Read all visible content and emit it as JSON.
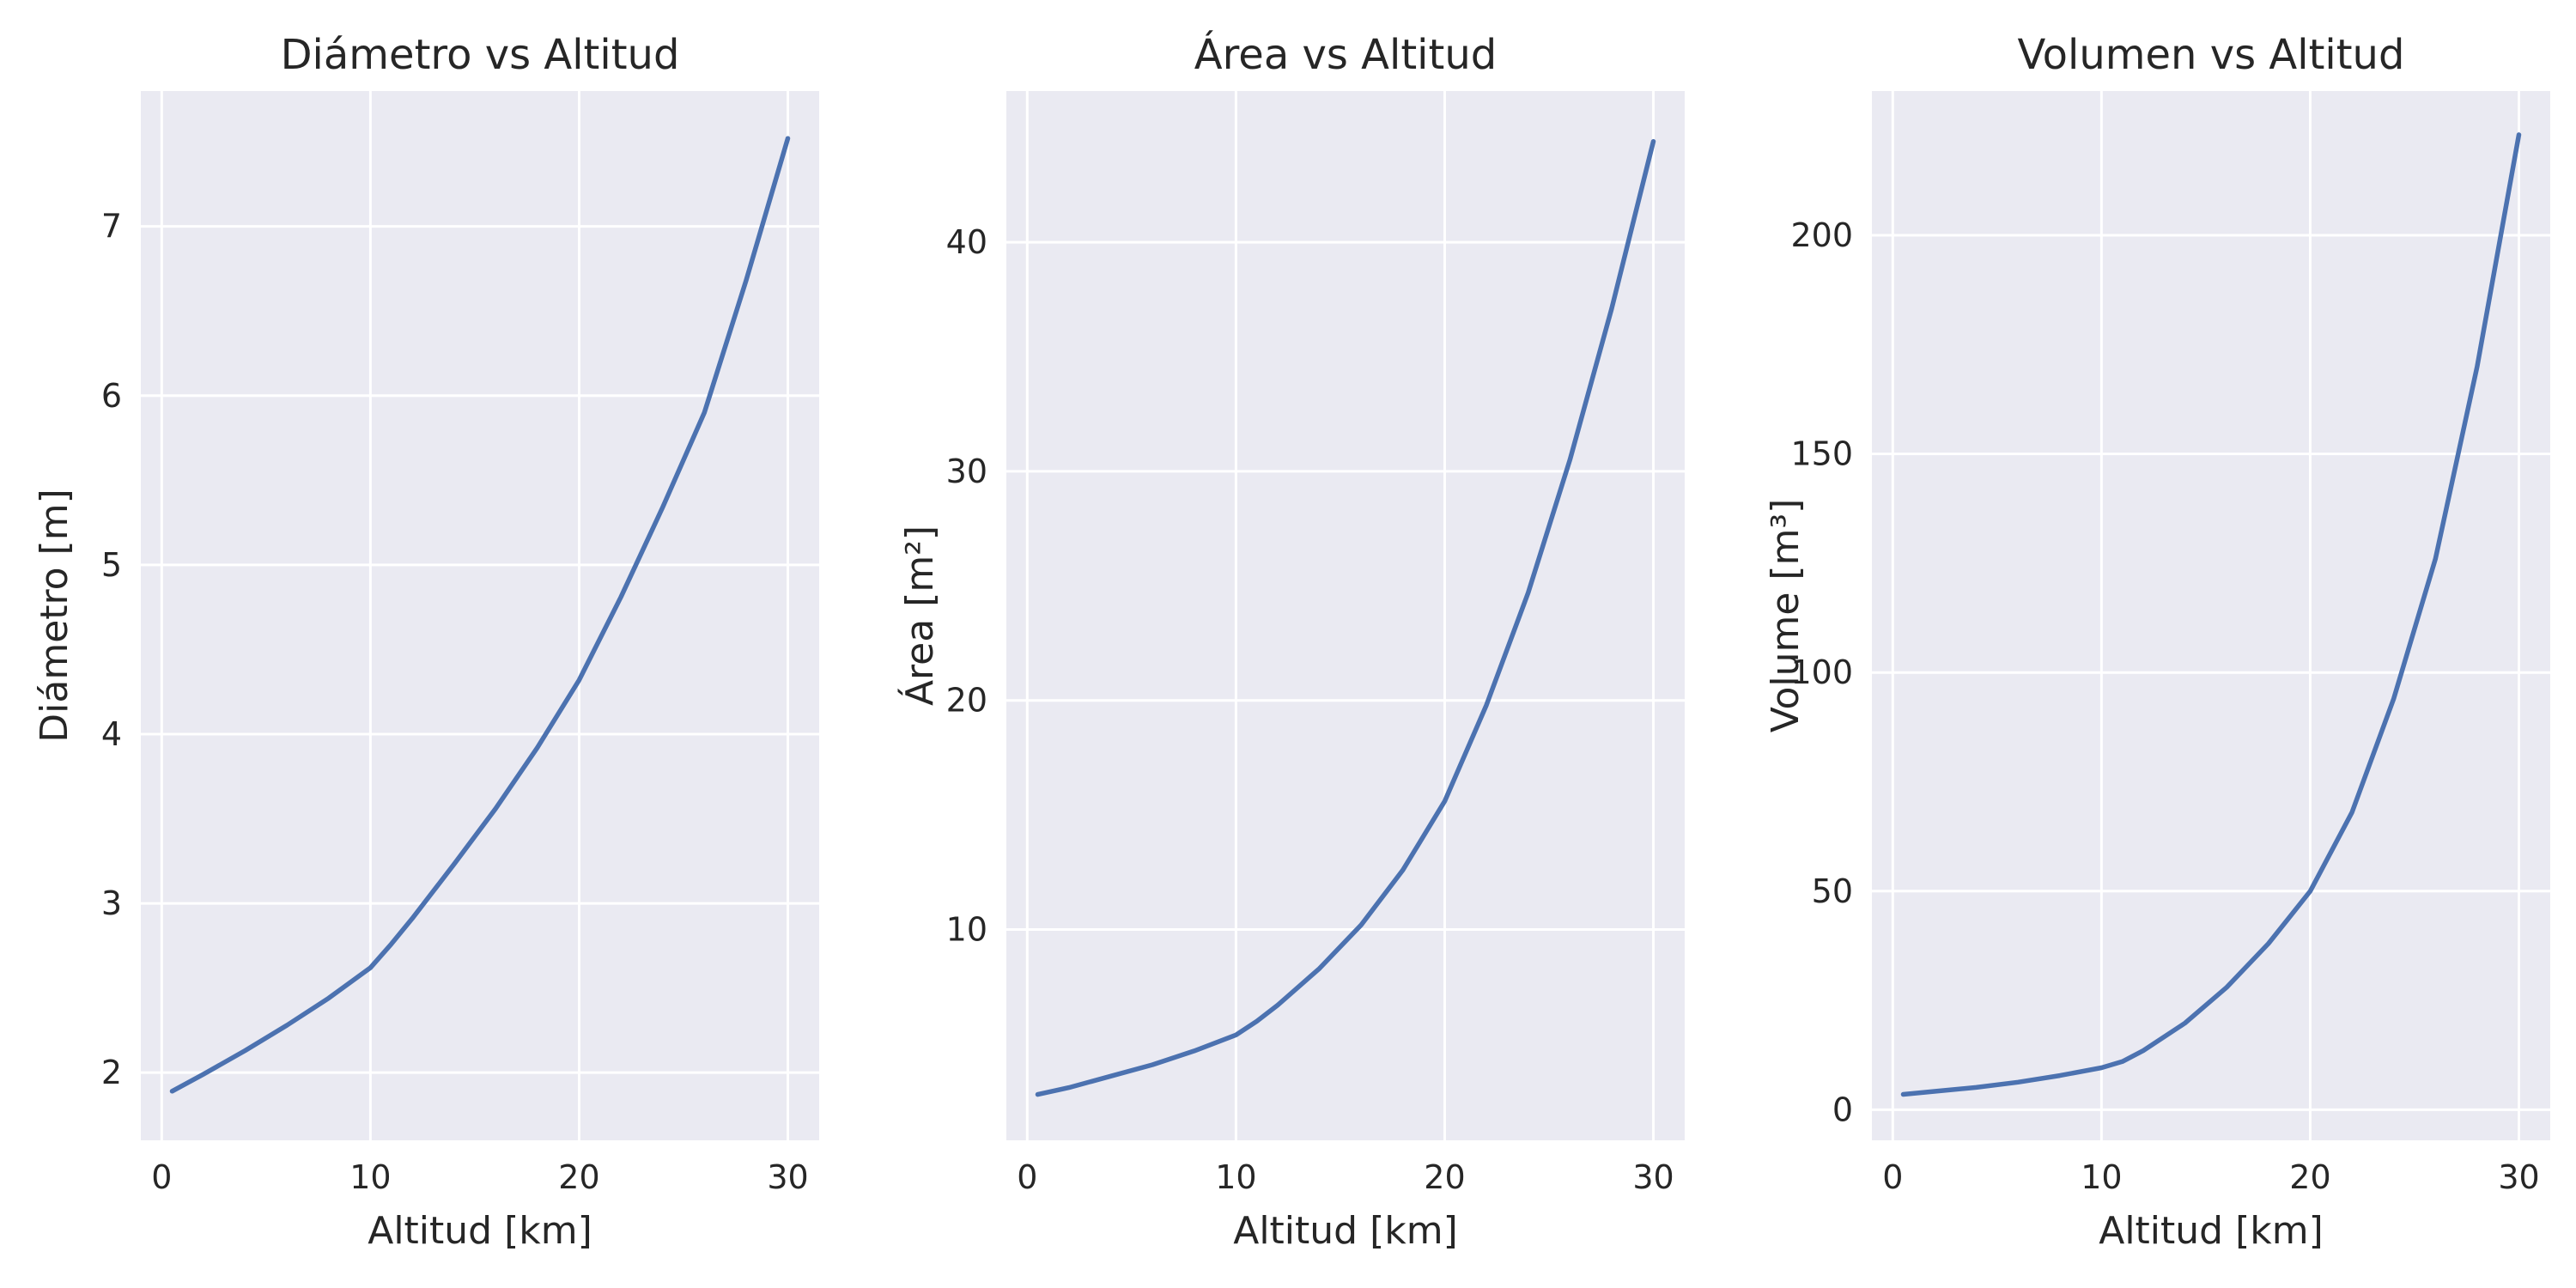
{
  "colors": {
    "plot_background": "#eaeaf2",
    "grid": "#ffffff",
    "series": "#4c72b0",
    "text": "#262626"
  },
  "chart_data": [
    {
      "type": "line",
      "title": "Diámetro vs Altitud",
      "xlabel": "Altitud [km]",
      "ylabel": "Diámetro [m]",
      "xlim": [
        -1,
        31.5
      ],
      "ylim": [
        1.6,
        7.8
      ],
      "xticks": [
        0,
        10,
        20,
        30
      ],
      "xtick_labels": [
        "0",
        "10",
        "20",
        "30"
      ],
      "yticks": [
        2,
        3,
        4,
        5,
        6,
        7
      ],
      "ytick_labels": [
        "2",
        "3",
        "4",
        "5",
        "6",
        "7"
      ],
      "grid": true,
      "series": [
        {
          "x": [
            0.5,
            2,
            4,
            6,
            8,
            10,
            11,
            12,
            14,
            16,
            18,
            20,
            22,
            24,
            26,
            28,
            30
          ],
          "y": [
            1.89,
            1.99,
            2.13,
            2.28,
            2.44,
            2.62,
            2.76,
            2.91,
            3.23,
            3.56,
            3.92,
            4.32,
            4.81,
            5.34,
            5.9,
            6.68,
            7.52
          ]
        }
      ]
    },
    {
      "type": "line",
      "title": "Área vs Altitud",
      "xlabel": "Altitud [km]",
      "ylabel": "Área [m²]",
      "xlim": [
        -1,
        31.5
      ],
      "ylim": [
        0.8,
        46.6
      ],
      "xticks": [
        0,
        10,
        20,
        30
      ],
      "xtick_labels": [
        "0",
        "10",
        "20",
        "30"
      ],
      "yticks": [
        10,
        20,
        30,
        40
      ],
      "ytick_labels": [
        "10",
        "20",
        "30",
        "40"
      ],
      "grid": true,
      "series": [
        {
          "x": [
            0.5,
            2,
            4,
            6,
            8,
            10,
            11,
            12,
            14,
            16,
            18,
            20,
            22,
            24,
            26,
            28,
            30
          ],
          "y": [
            2.8,
            3.1,
            3.6,
            4.1,
            4.7,
            5.4,
            6.0,
            6.7,
            8.3,
            10.2,
            12.6,
            15.6,
            19.8,
            24.7,
            30.5,
            37.1,
            44.4
          ]
        }
      ]
    },
    {
      "type": "line",
      "title": "Volumen vs Altitud",
      "xlabel": "Altitud [km]",
      "ylabel": "Volume [m³]",
      "xlim": [
        -1,
        31.5
      ],
      "ylim": [
        -7,
        233
      ],
      "xticks": [
        0,
        10,
        20,
        30
      ],
      "xtick_labels": [
        "0",
        "10",
        "20",
        "30"
      ],
      "yticks": [
        0,
        50,
        100,
        150,
        200
      ],
      "ytick_labels": [
        "0",
        "50",
        "100",
        "150",
        "200"
      ],
      "grid": true,
      "series": [
        {
          "x": [
            0.5,
            2,
            4,
            6,
            8,
            10,
            11,
            12,
            14,
            16,
            18,
            20,
            22,
            24,
            26,
            28,
            30
          ],
          "y": [
            3.5,
            4.2,
            5.1,
            6.3,
            7.8,
            9.6,
            11.0,
            13.5,
            19.8,
            28.0,
            38.0,
            50.0,
            68.0,
            94.0,
            126.0,
            170.0,
            223.0
          ]
        }
      ]
    }
  ]
}
